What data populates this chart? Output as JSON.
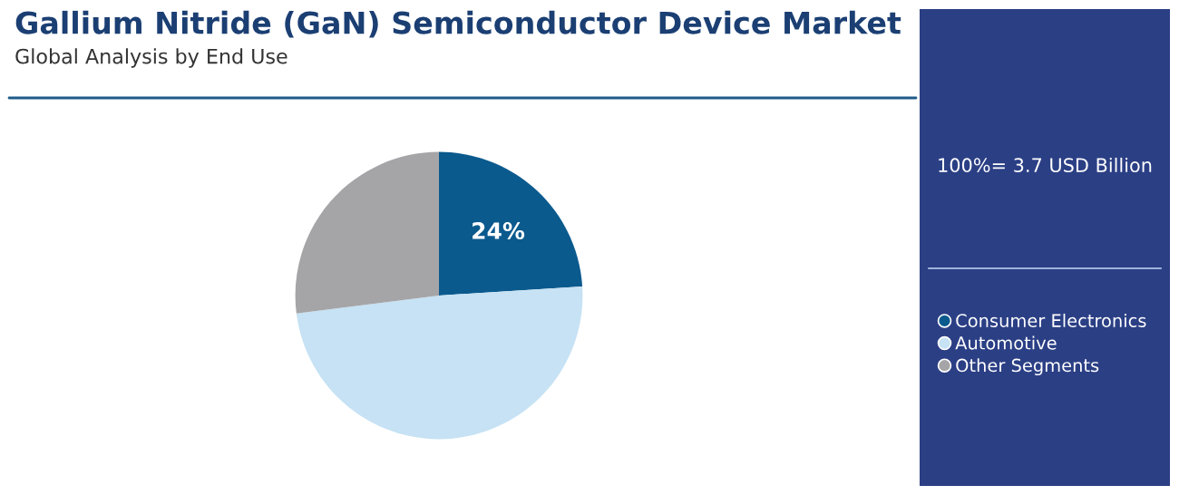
{
  "chart_data": {
    "type": "pie",
    "title": "Gallium Nitride (GaN) Semiconductor Device Market",
    "subtitle": "Global Analysis by End Use",
    "categories": [
      "Consumer Electronics",
      "Automotive",
      "Other Segments"
    ],
    "values": [
      24,
      49,
      27
    ],
    "colors": [
      "#0b5a8e",
      "#c6e2f4",
      "#a5a5a8"
    ],
    "value_labels": [
      "24%",
      null,
      null
    ],
    "annotations": [
      "100%= 3.7 USD Billion"
    ],
    "legend": "right"
  }
}
